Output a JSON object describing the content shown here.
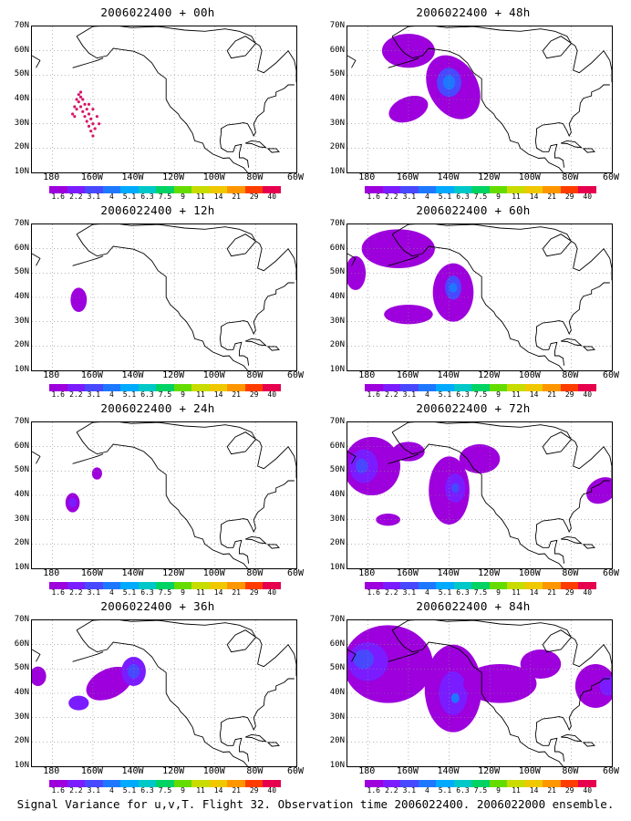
{
  "panels": [
    {
      "title": "2006022400 + 00h"
    },
    {
      "title": "2006022400 + 48h"
    },
    {
      "title": "2006022400 + 12h"
    },
    {
      "title": "2006022400 + 60h"
    },
    {
      "title": "2006022400 + 24h"
    },
    {
      "title": "2006022400 + 72h"
    },
    {
      "title": "2006022400 + 36h"
    },
    {
      "title": "2006022400 + 84h"
    }
  ],
  "lat_labels": [
    "70N",
    "60N",
    "50N",
    "40N",
    "30N",
    "20N",
    "10N"
  ],
  "lon_labels": [
    "180",
    "160W",
    "140W",
    "120W",
    "100W",
    "80W",
    "60W"
  ],
  "colorbar_labels": [
    "1.6",
    "2.2",
    "3.1",
    "4",
    "5.1",
    "6.3",
    "7.5",
    "9",
    "11",
    "14",
    "21",
    "29",
    "40"
  ],
  "colorbar_colors": [
    "#9d00dc",
    "#7a1cff",
    "#4848ff",
    "#1e78ff",
    "#00aaff",
    "#00c8c8",
    "#00d264",
    "#64dc00",
    "#c8dc00",
    "#f0c800",
    "#ff9600",
    "#ff3c00",
    "#e6004e"
  ],
  "footer": "Signal Variance for u,v,T. Flight 32. Observation time 2006022400. 2006022000 ensemble."
}
